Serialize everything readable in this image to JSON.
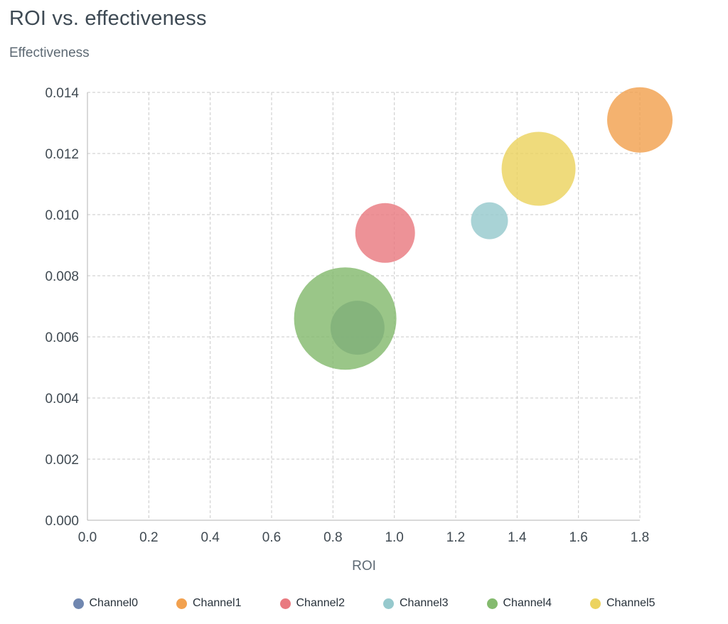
{
  "page": {
    "title": "ROI vs. effectiveness"
  },
  "chart_data": {
    "type": "scatter",
    "subtype": "bubble",
    "title": "ROI vs. effectiveness",
    "xlabel": "ROI",
    "ylabel": "Effectiveness",
    "xlim": [
      0,
      1.8
    ],
    "ylim": [
      0,
      0.014
    ],
    "grid": true,
    "grid_style": "dashed",
    "legend_position": "bottom",
    "x_ticks": [
      "0.0",
      "0.2",
      "0.4",
      "0.6",
      "0.8",
      "1.0",
      "1.2",
      "1.4",
      "1.6",
      "1.8"
    ],
    "y_ticks": [
      "0.000",
      "0.002",
      "0.004",
      "0.006",
      "0.008",
      "0.010",
      "0.012",
      "0.014"
    ],
    "series": [
      {
        "name": "Channel0",
        "color": "#7087b0",
        "x": 0.88,
        "y": 0.0063,
        "radius_px": 38
      },
      {
        "name": "Channel1",
        "color": "#f2a14f",
        "x": 1.8,
        "y": 0.0131,
        "radius_px": 46
      },
      {
        "name": "Channel2",
        "color": "#e97a80",
        "x": 0.97,
        "y": 0.0094,
        "radius_px": 42
      },
      {
        "name": "Channel3",
        "color": "#96c9cd",
        "x": 1.31,
        "y": 0.0098,
        "radius_px": 26
      },
      {
        "name": "Channel4",
        "color": "#84ba6e",
        "x": 0.84,
        "y": 0.0066,
        "radius_px": 72
      },
      {
        "name": "Channel5",
        "color": "#ecd35f",
        "x": 1.47,
        "y": 0.0115,
        "radius_px": 52
      }
    ],
    "colors": {
      "gridline": "#c9c9c9",
      "axis_line": "#b3b3b3",
      "tick_label": "#404a52",
      "title": "#3e4a54",
      "axis_title": "#5e6a74",
      "legend_label": "#27313a"
    }
  }
}
